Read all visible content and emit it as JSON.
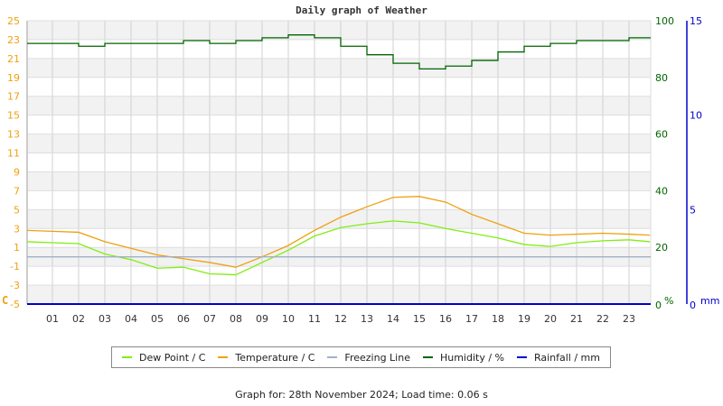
{
  "title": "Daily graph of Weather",
  "footer": "Graph for: 28th November 2024; Load time: 0.06 s",
  "colors": {
    "dew_point": "#80ee10",
    "temperature": "#f0a010",
    "freezing_line": "#a0b0c8",
    "humidity": "#006400",
    "rainfall": "#0000cc",
    "left_axis_text": "#f0a010",
    "humidity_axis_text": "#006400",
    "rain_axis_text": "#0000cc"
  },
  "legend": [
    {
      "label": "Dew Point / C",
      "color": "#80ee10"
    },
    {
      "label": "Temperature / C",
      "color": "#f0a010"
    },
    {
      "label": "Freezing Line",
      "color": "#a0b0c8"
    },
    {
      "label": "Humidity / %",
      "color": "#006400"
    },
    {
      "label": "Rainfall / mm",
      "color": "#0000cc"
    }
  ],
  "axes": {
    "left_unit": "C",
    "humidity_unit": "%",
    "rain_unit": "mm"
  },
  "chart_data": {
    "type": "line",
    "title": "Daily graph of Weather",
    "xlabel": "",
    "x_ticks": [
      "01",
      "02",
      "03",
      "04",
      "05",
      "06",
      "07",
      "08",
      "09",
      "10",
      "11",
      "12",
      "13",
      "14",
      "15",
      "16",
      "17",
      "18",
      "19",
      "20",
      "21",
      "22",
      "23"
    ],
    "y_left": {
      "label": "C",
      "ticks": [
        -5,
        -3,
        -1,
        1,
        3,
        5,
        7,
        9,
        11,
        13,
        15,
        17,
        19,
        21,
        23,
        25
      ],
      "range": [
        -5,
        25
      ]
    },
    "y_right_humidity": {
      "label": "%",
      "ticks": [
        0,
        20,
        40,
        60,
        80,
        100
      ],
      "range": [
        0,
        100
      ]
    },
    "y_right_rain": {
      "label": "mm",
      "ticks": [
        0,
        5,
        10,
        15
      ],
      "range": [
        0,
        15
      ]
    },
    "grid": true,
    "legend_position": "bottom",
    "x": [
      0,
      1,
      2,
      3,
      4,
      5,
      6,
      7,
      8,
      9,
      10,
      11,
      12,
      13,
      14,
      15,
      16,
      17,
      18,
      19,
      20,
      21,
      22,
      23,
      23.8
    ],
    "series": [
      {
        "name": "Temperature / C",
        "values": [
          2.8,
          2.7,
          2.6,
          1.6,
          0.9,
          0.2,
          -0.2,
          -0.6,
          -1.1,
          0.0,
          1.2,
          2.8,
          4.2,
          5.3,
          6.3,
          6.4,
          5.8,
          4.5,
          3.5,
          2.5,
          2.3,
          2.4,
          2.5,
          2.4,
          2.3
        ]
      },
      {
        "name": "Dew Point / C",
        "values": [
          1.6,
          1.5,
          1.4,
          0.3,
          -0.3,
          -1.2,
          -1.1,
          -1.8,
          -1.9,
          -0.6,
          0.7,
          2.2,
          3.1,
          3.5,
          3.8,
          3.6,
          3.0,
          2.5,
          2.0,
          1.3,
          1.1,
          1.5,
          1.7,
          1.8,
          1.6
        ]
      },
      {
        "name": "Freezing Line",
        "values": [
          0,
          0,
          0,
          0,
          0,
          0,
          0,
          0,
          0,
          0,
          0,
          0,
          0,
          0,
          0,
          0,
          0,
          0,
          0,
          0,
          0,
          0,
          0,
          0,
          0
        ]
      },
      {
        "name": "Humidity / %",
        "values": [
          92,
          92,
          91,
          92,
          92,
          92,
          93,
          92,
          93,
          94,
          95,
          94,
          91,
          88,
          85,
          83,
          84,
          86,
          89,
          91,
          92,
          93,
          93,
          94,
          94
        ]
      },
      {
        "name": "Rainfall / mm",
        "values": [
          0,
          0,
          0,
          0,
          0,
          0,
          0,
          0,
          0,
          0,
          0,
          0,
          0,
          0,
          0,
          0,
          0,
          0,
          0,
          0,
          0,
          0,
          0,
          0,
          0
        ]
      }
    ]
  }
}
